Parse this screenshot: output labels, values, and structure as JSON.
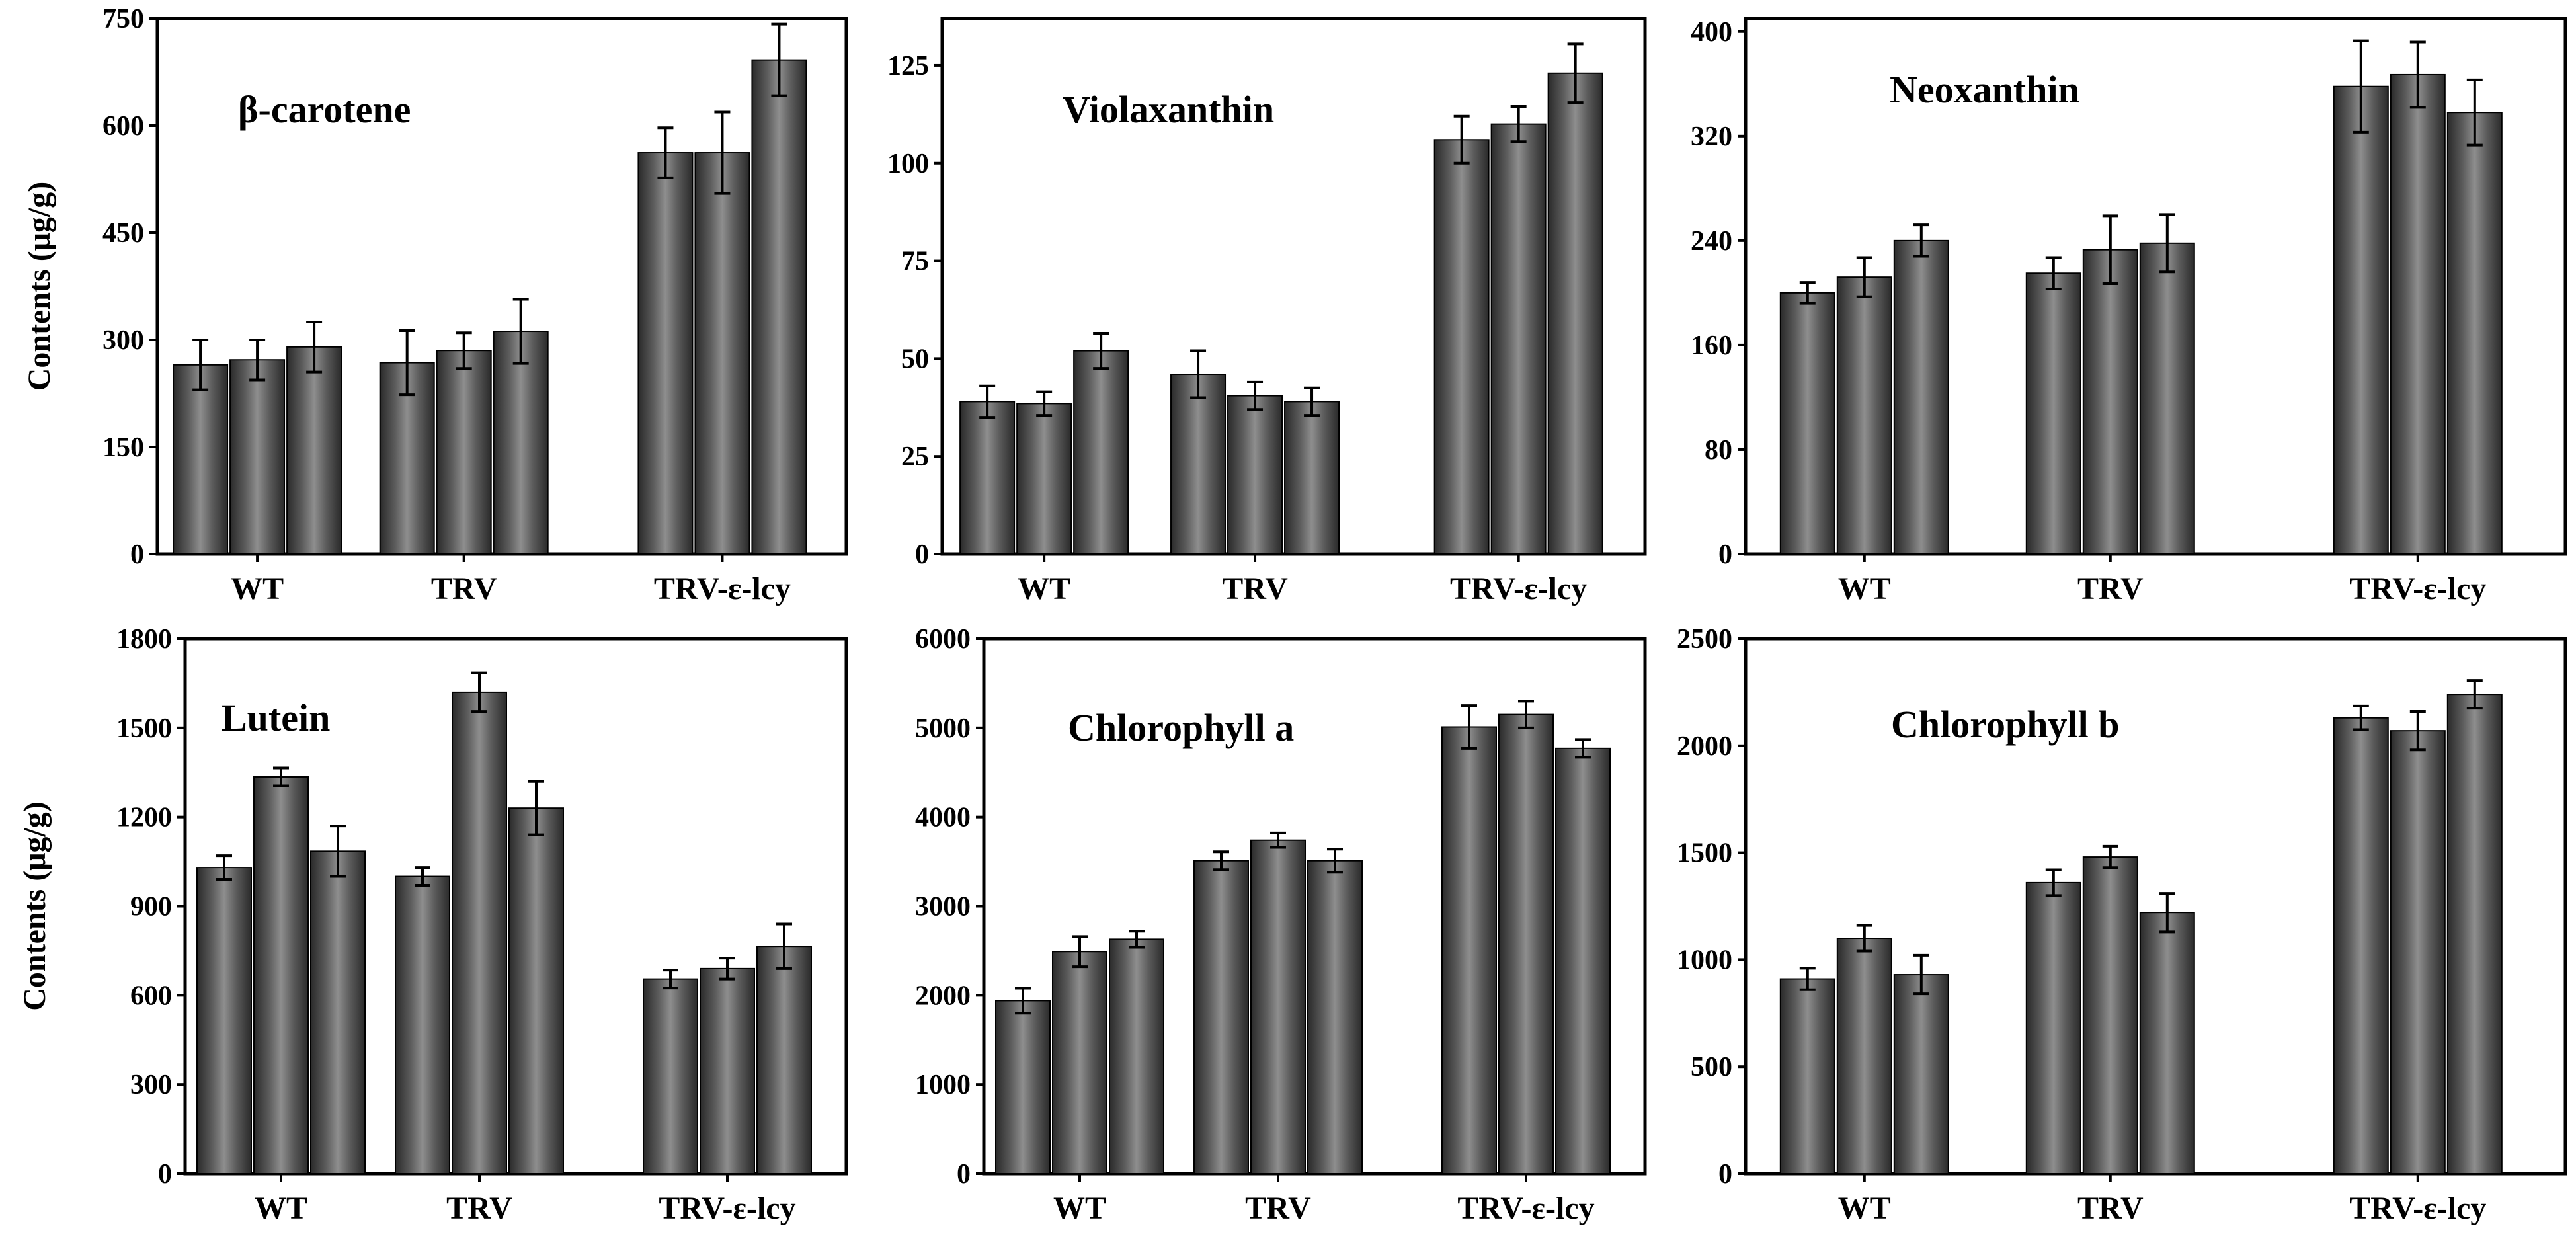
{
  "chart_data": [
    {
      "type": "bar",
      "title": "β-carotene",
      "ylabel": "Contents (μg/g)",
      "xlabel": "",
      "ylim": [
        0,
        750
      ],
      "yticks": [
        0,
        150,
        300,
        450,
        600,
        750
      ],
      "categories": [
        "WT",
        "TRV",
        "TRV-ε-lcy"
      ],
      "bars_per_group": 3,
      "values": [
        [
          265,
          272,
          290
        ],
        [
          268,
          285,
          312
        ],
        [
          562,
          562,
          692
        ]
      ],
      "errors": [
        [
          35,
          28,
          35
        ],
        [
          45,
          25,
          45
        ],
        [
          35,
          57,
          50
        ]
      ]
    },
    {
      "type": "bar",
      "title": "Violaxanthin",
      "ylabel": "",
      "xlabel": "",
      "ylim": [
        0,
        137
      ],
      "yticks": [
        0,
        25,
        50,
        75,
        100,
        125
      ],
      "categories": [
        "WT",
        "TRV",
        "TRV-ε-lcy"
      ],
      "bars_per_group": 3,
      "values": [
        [
          39,
          38.5,
          52
        ],
        [
          46,
          40.5,
          39
        ],
        [
          106,
          110,
          123
        ]
      ],
      "errors": [
        [
          4,
          3,
          4.5
        ],
        [
          6,
          3.5,
          3.5
        ],
        [
          6,
          4.5,
          7.5
        ]
      ]
    },
    {
      "type": "bar",
      "title": "Neoxanthin",
      "ylabel": "",
      "xlabel": "",
      "ylim": [
        0,
        410
      ],
      "yticks": [
        0,
        80,
        160,
        240,
        320,
        400
      ],
      "categories": [
        "WT",
        "TRV",
        "TRV-ε-lcy"
      ],
      "bars_per_group": 3,
      "values": [
        [
          200,
          212,
          240
        ],
        [
          215,
          233,
          238
        ],
        [
          358,
          367,
          338
        ]
      ],
      "errors": [
        [
          8,
          15,
          12
        ],
        [
          12,
          26,
          22
        ],
        [
          35,
          25,
          25
        ]
      ]
    },
    {
      "type": "bar",
      "title": "Lutein",
      "ylabel": "Contents (μg/g)",
      "xlabel": "",
      "ylim": [
        0,
        1800
      ],
      "yticks": [
        0,
        300,
        600,
        900,
        1200,
        1500,
        1800
      ],
      "categories": [
        "WT",
        "TRV",
        "TRV-ε-lcy"
      ],
      "bars_per_group": 3,
      "values": [
        [
          1030,
          1335,
          1085
        ],
        [
          1000,
          1620,
          1230
        ],
        [
          655,
          690,
          765
        ]
      ],
      "errors": [
        [
          40,
          30,
          85
        ],
        [
          30,
          65,
          90
        ],
        [
          30,
          35,
          75
        ]
      ]
    },
    {
      "type": "bar",
      "title": "Chlorophyll a",
      "ylabel": "",
      "xlabel": "",
      "ylim": [
        0,
        6000
      ],
      "yticks": [
        0,
        1000,
        2000,
        3000,
        4000,
        5000,
        6000
      ],
      "categories": [
        "WT",
        "TRV",
        "TRV-ε-lcy"
      ],
      "bars_per_group": 3,
      "values": [
        [
          1940,
          2490,
          2630
        ],
        [
          3510,
          3740,
          3510
        ],
        [
          5010,
          5150,
          4770
        ]
      ],
      "errors": [
        [
          140,
          170,
          90
        ],
        [
          100,
          80,
          130
        ],
        [
          240,
          150,
          100
        ]
      ]
    },
    {
      "type": "bar",
      "title": "Chlorophyll b",
      "ylabel": "",
      "xlabel": "",
      "ylim": [
        0,
        2500
      ],
      "yticks": [
        0,
        500,
        1000,
        1500,
        2000,
        2500
      ],
      "categories": [
        "WT",
        "TRV",
        "TRV-ε-lcy"
      ],
      "bars_per_group": 3,
      "values": [
        [
          910,
          1100,
          930
        ],
        [
          1360,
          1480,
          1220
        ],
        [
          2130,
          2070,
          2240
        ]
      ],
      "errors": [
        [
          50,
          60,
          90
        ],
        [
          60,
          50,
          90
        ],
        [
          55,
          90,
          65
        ]
      ]
    }
  ]
}
